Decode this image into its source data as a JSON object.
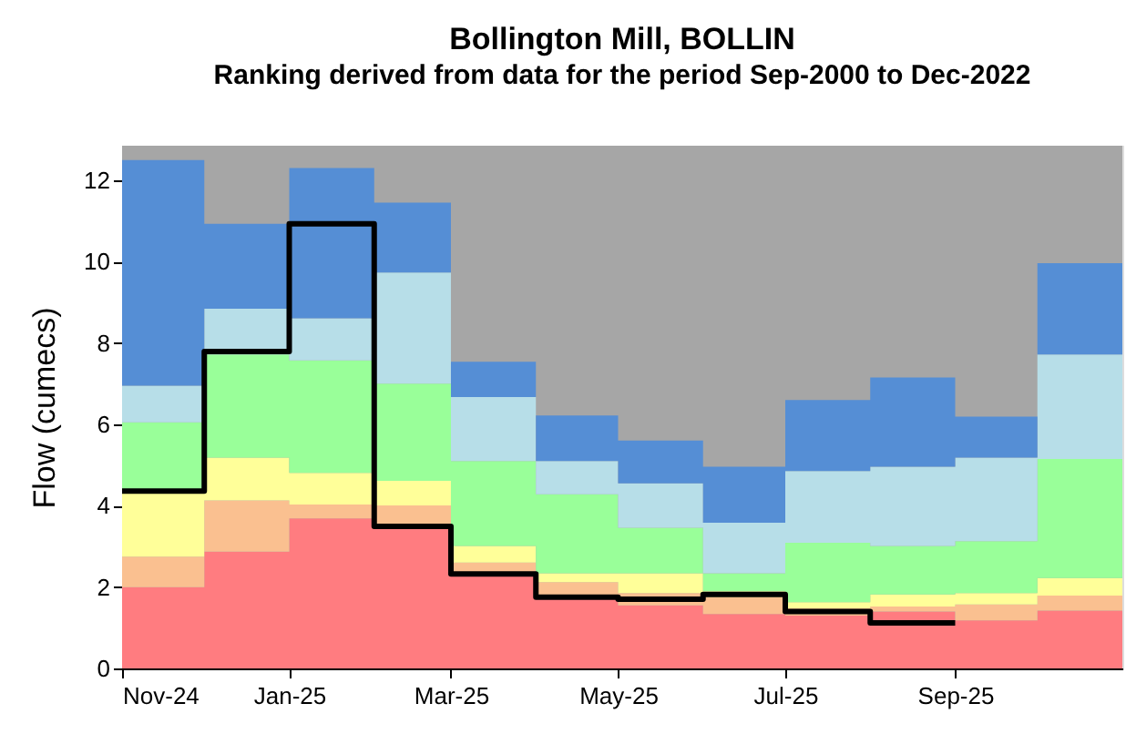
{
  "chart_data": {
    "type": "area",
    "stacked": true,
    "title": "Bollington Mill, BOLLIN",
    "subtitle": "Ranking derived from data for the period Sep-2000 to Dec-2022",
    "ylabel": "Flow (cumecs)",
    "x": [
      "2024-11",
      "2024-12",
      "2025-01",
      "2025-02",
      "2025-03",
      "2025-04",
      "2025-05",
      "2025-06",
      "2025-07",
      "2025-08",
      "2025-09",
      "2025-10",
      "2025-11"
    ],
    "series": [
      {
        "color": "#ff7c80",
        "values": [
          2.0,
          2.87,
          3.69,
          3.55,
          2.34,
          1.75,
          1.55,
          1.34,
          1.3,
          1.4,
          1.18,
          1.42,
          1.42
        ]
      },
      {
        "color": "#fac090",
        "values": [
          0.75,
          1.26,
          0.34,
          0.46,
          0.26,
          0.37,
          0.3,
          0.41,
          0.18,
          0.12,
          0.39,
          0.37,
          0.37
        ]
      },
      {
        "color": "#ffff99",
        "values": [
          1.55,
          1.05,
          0.78,
          0.6,
          0.41,
          0.22,
          0.49,
          0.15,
          0.15,
          0.3,
          0.28,
          0.43,
          0.43
        ]
      },
      {
        "color": "#99ff99",
        "values": [
          1.75,
          2.54,
          2.76,
          2.39,
          2.09,
          1.94,
          1.12,
          0.44,
          1.46,
          1.19,
          1.28,
          2.93,
          2.93
        ]
      },
      {
        "color": "#b7dee8",
        "values": [
          0.9,
          1.12,
          1.04,
          2.73,
          1.57,
          0.82,
          1.09,
          1.24,
          1.76,
          1.95,
          2.05,
          2.57,
          2.57
        ]
      },
      {
        "color": "#558ed5",
        "values": [
          5.55,
          2.09,
          3.69,
          1.72,
          0.87,
          1.12,
          1.05,
          1.38,
          1.75,
          2.19,
          1.01,
          2.24,
          2.24
        ]
      },
      {
        "type": "step",
        "color": "#000000",
        "x": [
          "2024-11",
          "2024-12",
          "2025-01",
          "2025-02",
          "2025-03",
          "2025-04",
          "2025-05",
          "2025-06",
          "2025-07",
          "2025-08",
          "2025-09"
        ],
        "values": [
          4.36,
          7.79,
          10.93,
          3.49,
          2.32,
          1.75,
          1.7,
          1.82,
          1.4,
          1.12,
          1.12
        ]
      }
    ],
    "bands": [
      {
        "axis": "y",
        "from": 0,
        "to": 12.85,
        "color": "#a6a6a6"
      }
    ],
    "xlim": [
      "2024-11",
      "2025-11"
    ],
    "xticks": [
      {
        "value": "2024-11",
        "label": "Nov-24"
      },
      {
        "value": "2025-01",
        "label": "Jan-25"
      },
      {
        "value": "2025-03",
        "label": "Mar-25"
      },
      {
        "value": "2025-05",
        "label": "May-25"
      },
      {
        "value": "2025-07",
        "label": "Jul-25"
      },
      {
        "value": "2025-09",
        "label": "Sep-25"
      }
    ],
    "ylim": [
      0,
      12.85
    ],
    "yticks": [
      0,
      2,
      4,
      6,
      8,
      10,
      12
    ]
  }
}
